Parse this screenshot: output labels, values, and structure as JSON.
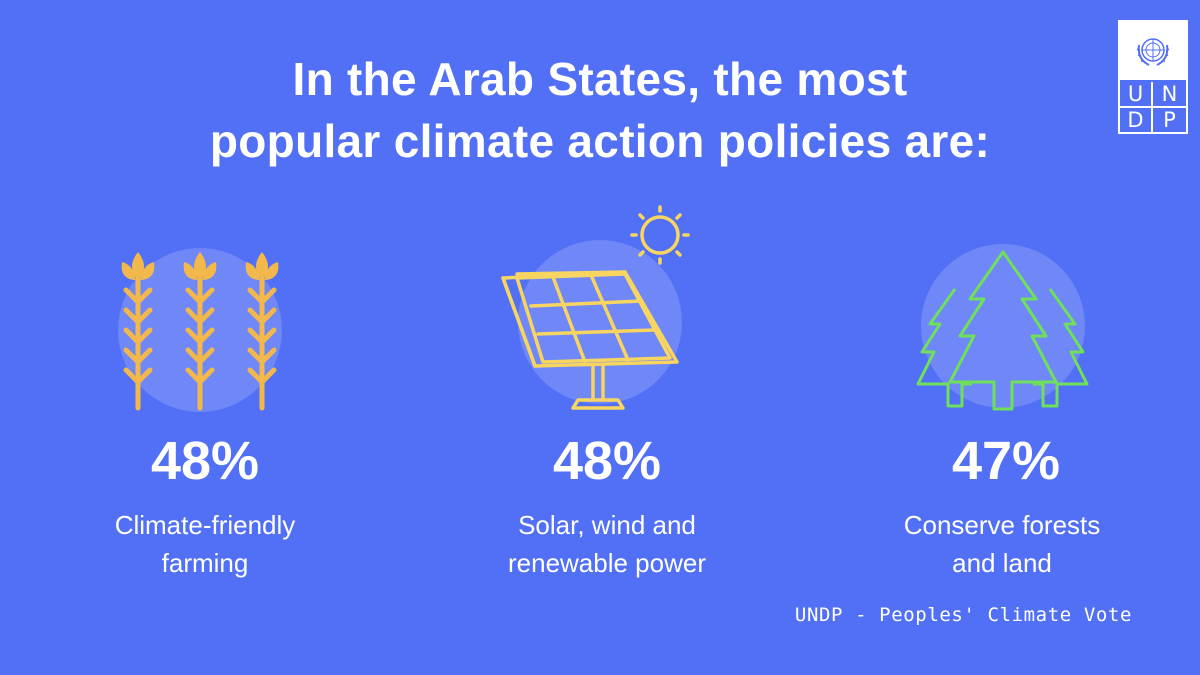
{
  "title": {
    "line1": "In the Arab States, the most",
    "line2": "popular climate action policies are:"
  },
  "logo": {
    "letters": [
      "U",
      "N",
      "D",
      "P"
    ],
    "icon": "un-emblem-icon"
  },
  "items": [
    {
      "percent": "48%",
      "label_line1": "Climate-friendly",
      "label_line2": "farming",
      "icon": "wheat-icon"
    },
    {
      "percent": "48%",
      "label_line1": "Solar, wind and",
      "label_line2": "renewable power",
      "icon": "solar-panel-icon"
    },
    {
      "percent": "47%",
      "label_line1": "Conserve forests",
      "label_line2": "and land",
      "icon": "trees-icon"
    }
  ],
  "source": "UNDP - Peoples' Climate Vote",
  "colors": {
    "background": "#5270f5",
    "circle": "#6f87f7",
    "wheat": "#f2b84b",
    "solar": "#f7d560",
    "trees": "#6ee05a"
  }
}
